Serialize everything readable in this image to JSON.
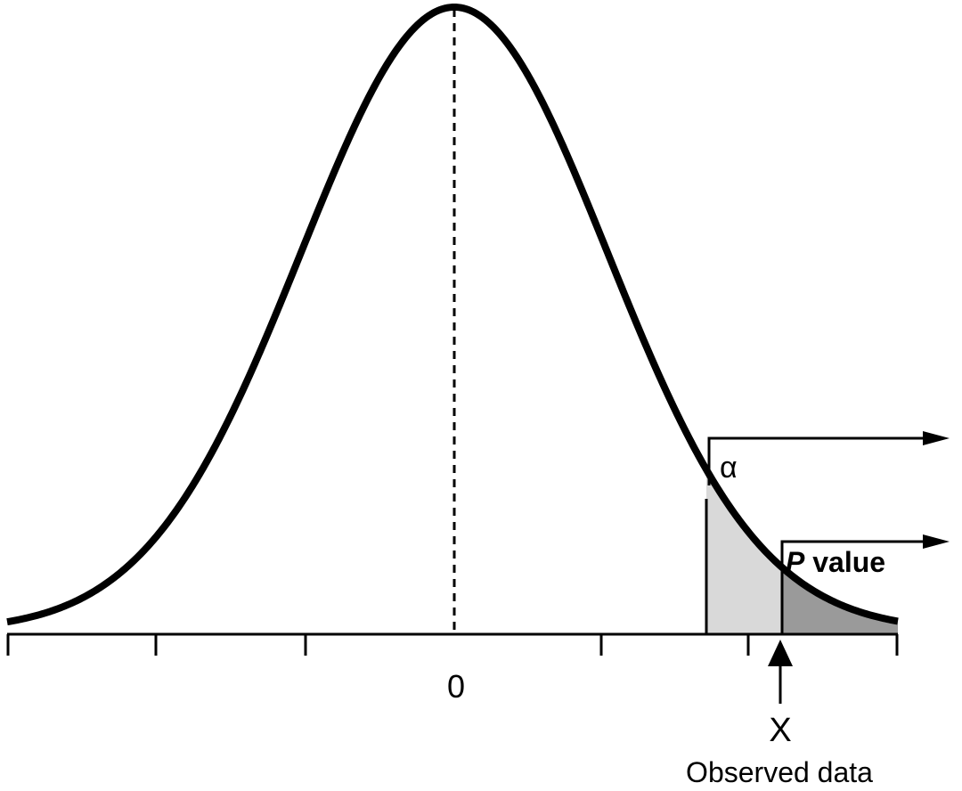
{
  "labels": {
    "alpha": "α",
    "p_symbol": "P",
    "p_word": "value",
    "zero": "0",
    "x": "X",
    "observed": "Observed data"
  }
}
